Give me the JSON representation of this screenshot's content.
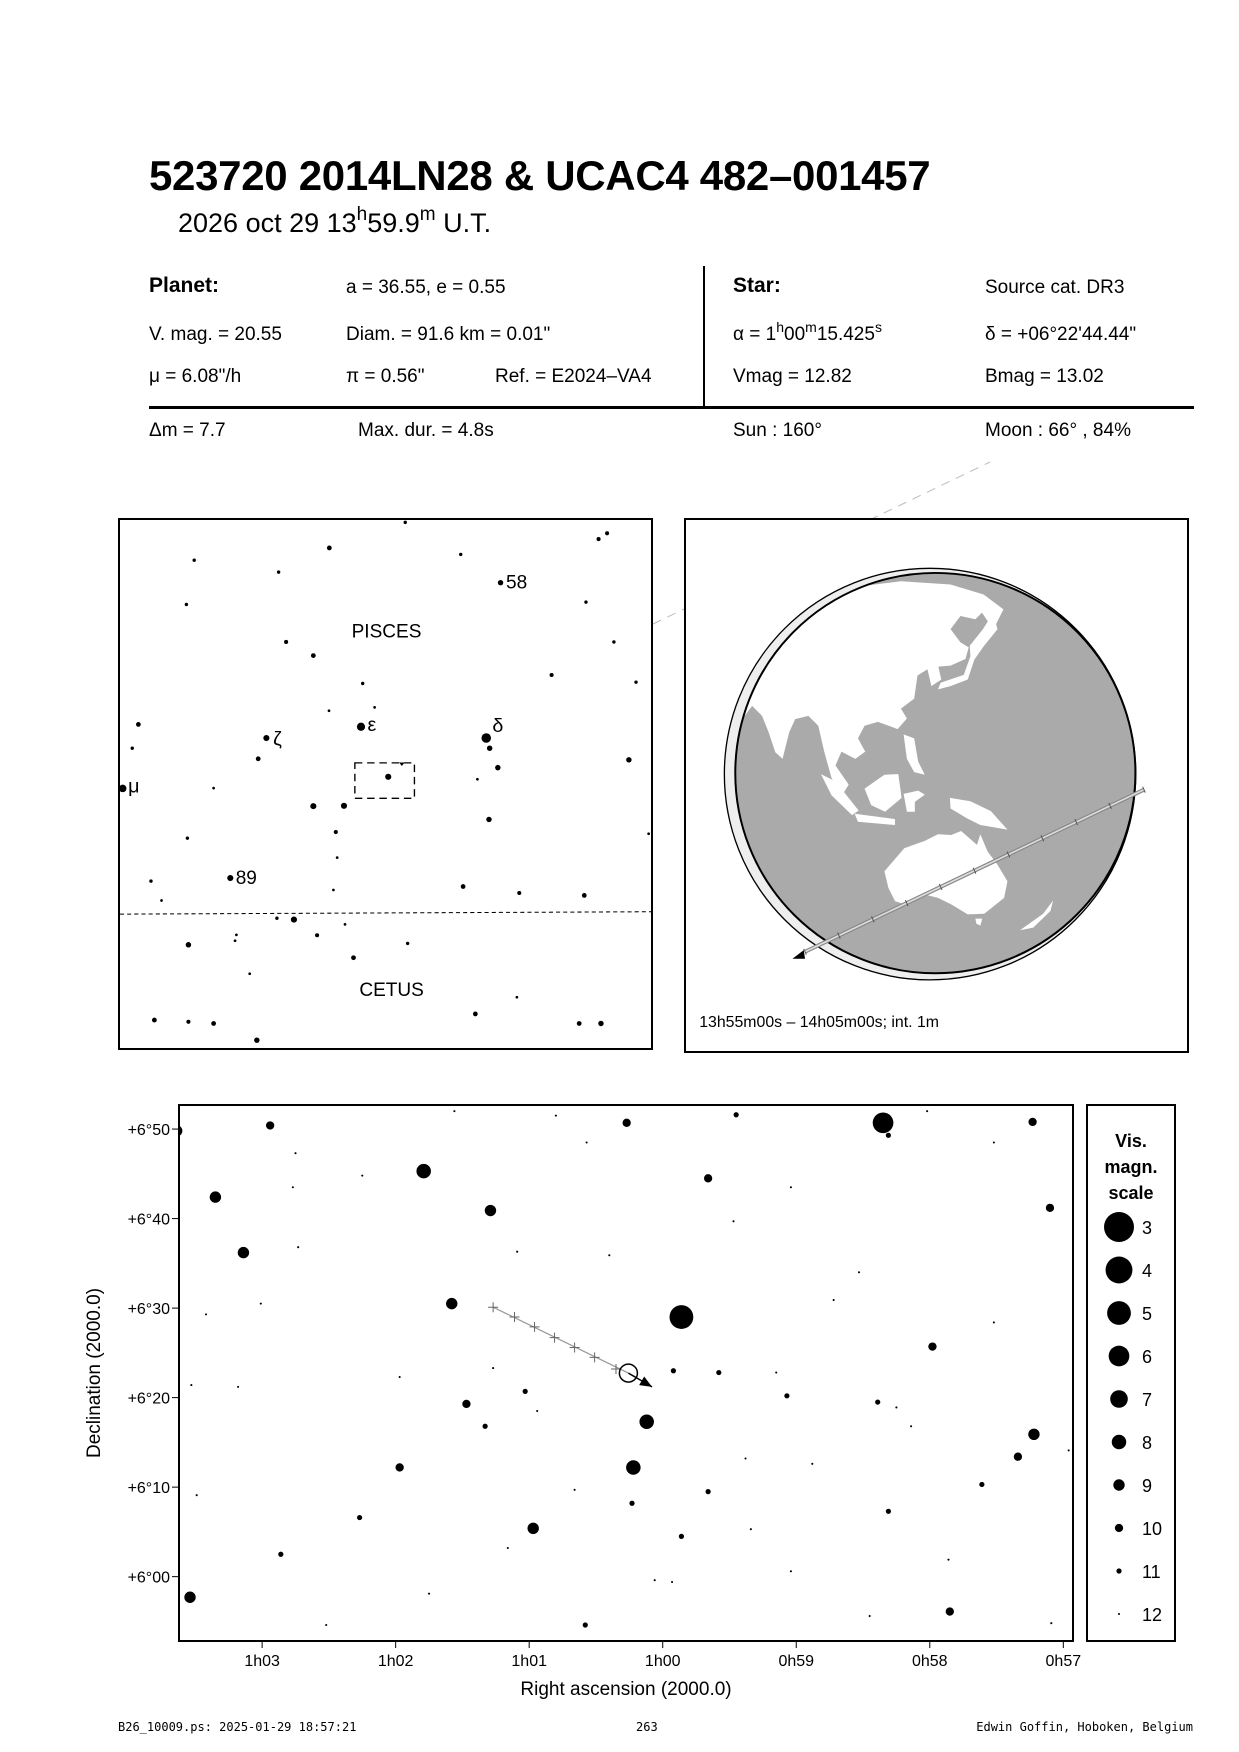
{
  "title": "523720 2014LN28  &  UCAC4 482–001457",
  "subtitle": {
    "date": "2026 oct 29  13",
    "h": "h",
    "min": "59.9",
    "m": "m",
    "ut": " U.T."
  },
  "planet": {
    "heading": "Planet:",
    "orbit": "a = 36.55, e = 0.55",
    "vmag": "V. mag. = 20.55",
    "diam": "Diam. = 91.6 km = 0.01\"",
    "mu": "μ =  6.08\"/h",
    "pi": "π =  0.56\"",
    "ref": "Ref. = E2024–VA4"
  },
  "star": {
    "heading": "Star:",
    "source": "Source cat.  DR3",
    "alpha_prefix": "α =  1",
    "alpha_h": "h",
    "alpha_min": "00",
    "alpha_m": "m",
    "alpha_sec": "15.425",
    "alpha_s": "s",
    "delta": "δ = +06°22'44.44\"",
    "vmag": "Vmag = 12.82",
    "bmag": "Bmag = 13.02"
  },
  "event": {
    "dm": "Δm = 7.7",
    "maxdur": "Max. dur. = 4.8s",
    "sun": "Sun : 160°",
    "moon": "Moon :  66° , 84%"
  },
  "finder": {
    "constellations": [
      "PISCES",
      "CETUS"
    ],
    "star_labels": {
      "s58": "58",
      "epsilon": "ε",
      "delta": "δ",
      "zeta": "ζ",
      "mu": "μ",
      "s89": "89"
    }
  },
  "globe": {
    "time_range": "13h55m00s – 14h05m00s; int.  1m",
    "ocean_color": "#aaaaaa",
    "land_color": "#ffffff"
  },
  "chart_data": {
    "type": "scatter",
    "xlabel": "Right ascension (2000.0)",
    "ylabel": "Declination (2000.0)",
    "xlim": [
      "1h03.63m",
      "0h56.92m"
    ],
    "ylim": [
      "+5°52.7'",
      "+6°52.8'"
    ],
    "x_ticks": [
      "1h03",
      "1h02",
      "1h01",
      "1h00",
      "0h59",
      "0h58",
      "0h57"
    ],
    "y_ticks": [
      "+6°50",
      "+6°40",
      "+6°30",
      "+6°20",
      "+6°10",
      "+6°00"
    ],
    "grid": false,
    "stars": [
      [
        "0h58.35m",
        "+6°50.7'",
        6
      ],
      [
        "0h59.86m",
        "+6°29.0'",
        5
      ],
      [
        "1h01.79m",
        "+6°45.3'",
        8
      ],
      [
        "1h01.29m",
        "+6°40.9'",
        9
      ],
      [
        "1h03.35m",
        "+6°42.4'",
        9
      ],
      [
        "1h03.14m",
        "+6°36.2'",
        9
      ],
      [
        "1h02.94m",
        "+6°50.4'",
        10
      ],
      [
        "1h03.64m",
        "+6°49.8'",
        9
      ],
      [
        "1h01.58m",
        "+6°30.5'",
        9
      ],
      [
        "1h01.47m",
        "+6°19.3'",
        10
      ],
      [
        "1h00.12m",
        "+6°17.3'",
        8
      ],
      [
        "1h00.22m",
        "+6°12.2'",
        8
      ],
      [
        "1h00.97m",
        "+6°05.4'",
        9
      ],
      [
        "0h59.66m",
        "+6°44.5'",
        10
      ],
      [
        "1h00.27m",
        "+6°50.7'",
        10
      ],
      [
        "0h59.45m",
        "+6°51.6'",
        11
      ],
      [
        "0h57.23m",
        "+6°50.8'",
        10
      ],
      [
        "0h57.10m",
        "+6°41.2'",
        10
      ],
      [
        "0h57.98m",
        "+6°25.7'",
        10
      ],
      [
        "0h57.22m",
        "+6°15.9'",
        9
      ],
      [
        "0h57.34m",
        "+6°13.4'",
        10
      ],
      [
        "1h03.54m",
        "+5°57.7'",
        9
      ],
      [
        "0h57.85m",
        "+5°56.1'",
        10
      ],
      [
        "1h01.97m",
        "+6°12.2'",
        10
      ],
      [
        "0h59.92m",
        "+6°23.0'",
        11
      ],
      [
        "0h59.58m",
        "+6°22.8'",
        11
      ],
      [
        "1h01.03m",
        "+6°20.7'",
        11
      ],
      [
        "1h01.33m",
        "+6°16.8'",
        11
      ],
      [
        "0h59.66m",
        "+6°09.5'",
        11
      ],
      [
        "0h59.15m",
        "+6°22.8'",
        12
      ],
      [
        "0h59.07m",
        "+6°20.2'",
        11
      ],
      [
        "1h00.23m",
        "+6°08.2'",
        11
      ],
      [
        "0h59.86m",
        "+6°04.5'",
        11
      ],
      [
        "0h59.34m",
        "+6°05.3'",
        12
      ],
      [
        "1h02.27m",
        "+6°06.6'",
        11
      ],
      [
        "1h02.86m",
        "+6°02.5'",
        11
      ],
      [
        "0h58.31m",
        "+6°49.3'",
        11
      ],
      [
        "0h58.39m",
        "+6°19.5'",
        11
      ],
      [
        "0h58.31m",
        "+6°07.3'",
        11
      ],
      [
        "0h57.61m",
        "+6°10.3'",
        11
      ],
      [
        "1h00.58m",
        "+5°54.6'",
        11
      ],
      [
        "0h58.88m",
        "+6°12.6'",
        12
      ],
      [
        "1h02.75m",
        "+6°47.3'",
        12
      ],
      [
        "1h02.77m",
        "+6°43.5'",
        12
      ],
      [
        "1h02.73m",
        "+6°36.8'",
        12
      ],
      [
        "1h03.42m",
        "+6°29.3'",
        12
      ],
      [
        "1h03.53m",
        "+6°21.4'",
        12
      ],
      [
        "1h02.52m",
        "+5°54.6'",
        12
      ],
      [
        "1h00.06m",
        "+5°59.6'",
        12
      ],
      [
        "0h57.09m",
        "+5°54.8'",
        12
      ],
      [
        "0h56.96m",
        "+6°14.1'",
        12
      ],
      [
        "0h58.14m",
        "+6°16.8'",
        12
      ],
      [
        "0h58.25m",
        "+6°18.9'",
        12
      ],
      [
        "0h58.72m",
        "+6°30.9'",
        12
      ],
      [
        "0h57.52m",
        "+6°48.5'",
        12
      ],
      [
        "0h58.02m",
        "+6°52.0'",
        12
      ],
      [
        "0h59.04m",
        "+6°00.6'",
        12
      ],
      [
        "1h00.94m",
        "+6°18.5'",
        12
      ],
      [
        "1h00.66m",
        "+6°09.7'",
        12
      ],
      [
        "1h01.27m",
        "+6°23.3'",
        12
      ],
      [
        "1h01.97m",
        "+6°22.3'",
        12
      ],
      [
        "1h03.01m",
        "+6°30.5'",
        12
      ],
      [
        "1h03.18m",
        "+6°21.2'",
        12
      ],
      [
        "1h03.49m",
        "+6°09.1'",
        12
      ],
      [
        "0h59.93m",
        "+5°59.4'",
        12
      ],
      [
        "0h58.45m",
        "+5°55.6'",
        12
      ],
      [
        "1h00.57m",
        "+6°48.5'",
        12
      ],
      [
        "1h00.80m",
        "+6°51.5'",
        12
      ],
      [
        "1h01.56m",
        "+6°52.0'",
        12
      ],
      [
        "1h02.25m",
        "+6°44.8'",
        12
      ],
      [
        "1h01.09m",
        "+6°36.3'",
        12
      ],
      [
        "1h00.40m",
        "+6°35.9'",
        12
      ],
      [
        "0h59.47m",
        "+6°39.7'",
        12
      ],
      [
        "0h58.53m",
        "+6°34.0'",
        12
      ],
      [
        "0h59.04m",
        "+6°43.5'",
        12
      ],
      [
        "0h57.52m",
        "+6°28.4'",
        12
      ],
      [
        "0h59.38m",
        "+6°13.2'",
        12
      ],
      [
        "1h01.16m",
        "+6°03.2'",
        12
      ],
      [
        "1h01.75m",
        "+5°58.1'",
        12
      ],
      [
        "0h57.86m",
        "+6°01.9'",
        12
      ]
    ],
    "track": {
      "marks": [
        [
          "1h01.27m",
          "+6°30.1'"
        ],
        [
          "1h01.11m",
          "+6°29.0'"
        ],
        [
          "1h00.96m",
          "+6°27.9'"
        ],
        [
          "1h00.81m",
          "+6°26.7'"
        ],
        [
          "1h00.66m",
          "+6°25.6'"
        ],
        [
          "1h00.51m",
          "+6°24.5'"
        ],
        [
          "1h00.35m",
          "+6°23.2'"
        ]
      ],
      "target": [
        "1h00.257m",
        "+6°22.74'"
      ],
      "arrow_end": [
        "1h00.08m",
        "+6°21.2'"
      ]
    },
    "legend": {
      "title": [
        "Vis.",
        "magn.",
        "scale"
      ],
      "mags": [
        3,
        4,
        5,
        6,
        7,
        8,
        9,
        10,
        11,
        12
      ]
    }
  },
  "footer": {
    "file": "B26_10009.ps: 2025-01-29 18:57:21",
    "page": "263",
    "author": "Edwin Goffin, Hoboken, Belgium"
  }
}
